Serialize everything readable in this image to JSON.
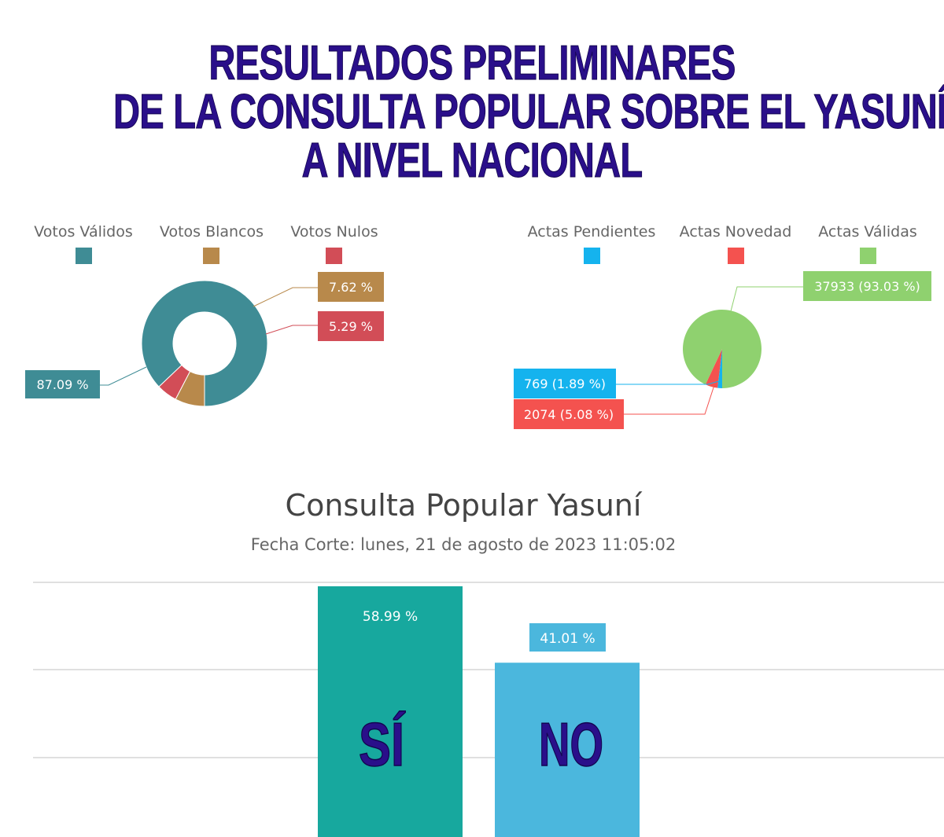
{
  "headline": [
    "RESULTADOS PRELIMINARES",
    "DE LA CONSULTA POPULAR SOBRE EL YASUNÍ",
    "A NIVEL NACIONAL"
  ],
  "chart_data": [
    {
      "type": "pie",
      "variant": "donut",
      "legend_position": "top",
      "legend": [
        "Votos Válidos",
        "Votos Blancos",
        "Votos Nulos"
      ],
      "values": [
        87.09,
        7.62,
        5.29
      ],
      "labels": [
        "87.09 %",
        "7.62 %",
        "5.29 %"
      ],
      "colors": [
        "#3f8c95",
        "#b8894b",
        "#d24d57"
      ]
    },
    {
      "type": "pie",
      "legend_position": "top",
      "legend": [
        "Actas Pendientes",
        "Actas Novedad",
        "Actas Válidas"
      ],
      "values": [
        769,
        2074,
        37933
      ],
      "percentages": [
        1.89,
        5.08,
        93.03
      ],
      "labels": [
        "769 (1.89 %)",
        "2074 (5.08 %)",
        "37933 (93.03 %)"
      ],
      "colors": [
        "#15b3ee",
        "#f4524f",
        "#8fd16f"
      ]
    },
    {
      "type": "bar",
      "title": "Consulta Popular Yasuní",
      "subtitle": "Fecha Corte: lunes, 21 de agosto de 2023 11:05:02",
      "categories": [
        "SÍ",
        "NO"
      ],
      "values": [
        58.99,
        41.01
      ],
      "labels": [
        "58.99 %",
        "41.01 %"
      ],
      "colors": [
        "#17a89e",
        "#4bb7dd"
      ],
      "grid": true,
      "ylim": [
        0,
        60
      ]
    }
  ]
}
